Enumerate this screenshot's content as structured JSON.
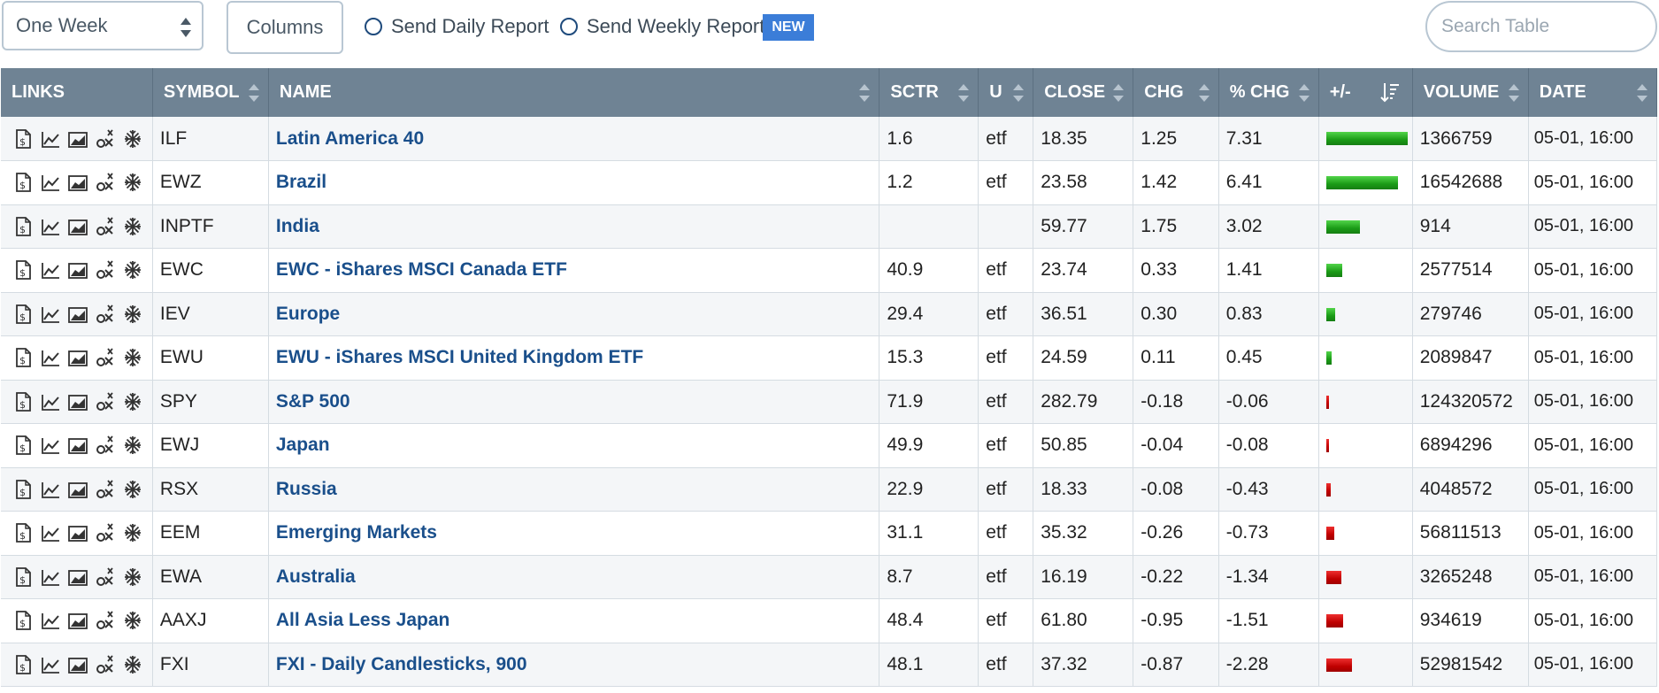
{
  "toolbar": {
    "period_select": "One Week",
    "columns_button": "Columns",
    "daily_report": "Send Daily Report",
    "weekly_report": "Send Weekly Report",
    "new_badge": "NEW",
    "search_placeholder": "Search Table"
  },
  "table": {
    "headers": {
      "links": "LINKS",
      "symbol": "SYMBOL",
      "name": "NAME",
      "sctr": "SCTR",
      "u": "U",
      "close": "CLOSE",
      "chg": "CHG",
      "pct_chg": "% CHG",
      "plusminus": "+/-",
      "volume": "VOLUME",
      "date": "DATE"
    },
    "rows": [
      {
        "symbol": "ILF",
        "name": "Latin America 40",
        "sctr": "1.6",
        "u": "etf",
        "close": "18.35",
        "chg": "1.25",
        "pct_chg": "7.31",
        "pct": 7.31,
        "volume": "1366759",
        "date": "05-01, 16:00"
      },
      {
        "symbol": "EWZ",
        "name": "Brazil",
        "sctr": "1.2",
        "u": "etf",
        "close": "23.58",
        "chg": "1.42",
        "pct_chg": "6.41",
        "pct": 6.41,
        "volume": "16542688",
        "date": "05-01, 16:00"
      },
      {
        "symbol": "INPTF",
        "name": "India",
        "sctr": "",
        "u": "",
        "close": "59.77",
        "chg": "1.75",
        "pct_chg": "3.02",
        "pct": 3.02,
        "volume": "914",
        "date": "05-01, 16:00"
      },
      {
        "symbol": "EWC",
        "name": "EWC - iShares MSCI Canada ETF",
        "sctr": "40.9",
        "u": "etf",
        "close": "23.74",
        "chg": "0.33",
        "pct_chg": "1.41",
        "pct": 1.41,
        "volume": "2577514",
        "date": "05-01, 16:00"
      },
      {
        "symbol": "IEV",
        "name": "Europe",
        "sctr": "29.4",
        "u": "etf",
        "close": "36.51",
        "chg": "0.30",
        "pct_chg": "0.83",
        "pct": 0.83,
        "volume": "279746",
        "date": "05-01, 16:00"
      },
      {
        "symbol": "EWU",
        "name": "EWU - iShares MSCI United Kingdom ETF",
        "sctr": "15.3",
        "u": "etf",
        "close": "24.59",
        "chg": "0.11",
        "pct_chg": "0.45",
        "pct": 0.45,
        "volume": "2089847",
        "date": "05-01, 16:00"
      },
      {
        "symbol": "SPY",
        "name": "S&P 500",
        "sctr": "71.9",
        "u": "etf",
        "close": "282.79",
        "chg": "-0.18",
        "pct_chg": "-0.06",
        "pct": -0.06,
        "volume": "124320572",
        "date": "05-01, 16:00"
      },
      {
        "symbol": "EWJ",
        "name": "Japan",
        "sctr": "49.9",
        "u": "etf",
        "close": "50.85",
        "chg": "-0.04",
        "pct_chg": "-0.08",
        "pct": -0.08,
        "volume": "6894296",
        "date": "05-01, 16:00"
      },
      {
        "symbol": "RSX",
        "name": "Russia",
        "sctr": "22.9",
        "u": "etf",
        "close": "18.33",
        "chg": "-0.08",
        "pct_chg": "-0.43",
        "pct": -0.43,
        "volume": "4048572",
        "date": "05-01, 16:00"
      },
      {
        "symbol": "EEM",
        "name": "Emerging Markets",
        "sctr": "31.1",
        "u": "etf",
        "close": "35.32",
        "chg": "-0.26",
        "pct_chg": "-0.73",
        "pct": -0.73,
        "volume": "56811513",
        "date": "05-01, 16:00"
      },
      {
        "symbol": "EWA",
        "name": "Australia",
        "sctr": "8.7",
        "u": "etf",
        "close": "16.19",
        "chg": "-0.22",
        "pct_chg": "-1.34",
        "pct": -1.34,
        "volume": "3265248",
        "date": "05-01, 16:00"
      },
      {
        "symbol": "AAXJ",
        "name": "All Asia Less Japan",
        "sctr": "48.4",
        "u": "etf",
        "close": "61.80",
        "chg": "-0.95",
        "pct_chg": "-1.51",
        "pct": -1.51,
        "volume": "934619",
        "date": "05-01, 16:00"
      },
      {
        "symbol": "FXI",
        "name": "FXI - Daily Candlesticks, 900",
        "sctr": "48.1",
        "u": "etf",
        "close": "37.32",
        "chg": "-0.87",
        "pct_chg": "-2.28",
        "pct": -2.28,
        "volume": "52981542",
        "date": "05-01, 16:00"
      }
    ],
    "link_icons": [
      "summary-icon",
      "line-chart-icon",
      "area-chart-icon",
      "point-figure-icon",
      "seasonality-icon"
    ],
    "colors": {
      "header_bg": "#6f8394",
      "link": "#1a4f8b",
      "up_bar": "#1a9b16",
      "down_bar": "#c00000"
    }
  }
}
